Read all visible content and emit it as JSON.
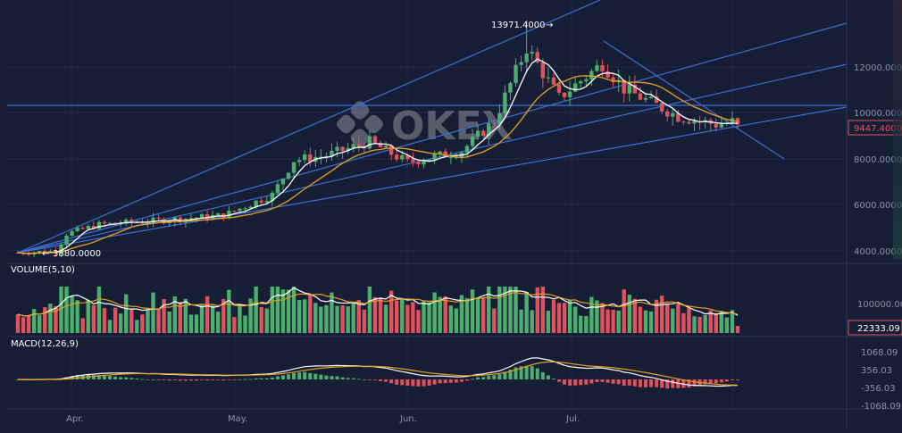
{
  "watermark": "OKEX",
  "price_panel": {
    "high_label": "13971.4000",
    "low_label": "3880.0000",
    "current_price": "9447.4000",
    "axis_ticks": [
      "12000.0000",
      "10000.0000",
      "8000.0000",
      "6000.0000",
      "4000.0000"
    ]
  },
  "volume_panel": {
    "label": "VOLUME(5,10)",
    "axis_ticks": [
      "100000.00"
    ],
    "current_value": "22333.09"
  },
  "macd_panel": {
    "label": "MACD(12,26,9)",
    "axis_ticks": [
      "1068.09",
      "356.03",
      "-356.03",
      "-1068.09"
    ]
  },
  "x_axis": {
    "months": [
      "Apr.",
      "May.",
      "Jun.",
      "Jul."
    ]
  },
  "colors": {
    "background": "#161e35",
    "up": "#4caf6e",
    "down": "#e0525e",
    "ma_fast": "#ffffff",
    "ma_slow": "#e8a020",
    "trendline": "#3d6fd4",
    "axis_text": "#8a93a8"
  },
  "chart_data": {
    "type": "candlestick",
    "x_range": [
      "2019-03-24",
      "2019-08-04"
    ],
    "ylim": [
      3500,
      14500
    ],
    "price_path": [
      {
        "date": "2019-03-24",
        "close": 3880
      },
      {
        "date": "2019-03-31",
        "close": 3950
      },
      {
        "date": "2019-04-02",
        "close": 4700
      },
      {
        "date": "2019-04-08",
        "close": 5100
      },
      {
        "date": "2019-04-20",
        "close": 5300
      },
      {
        "date": "2019-05-01",
        "close": 5500
      },
      {
        "date": "2019-05-10",
        "close": 6400
      },
      {
        "date": "2019-05-14",
        "close": 7900
      },
      {
        "date": "2019-05-20",
        "close": 8100
      },
      {
        "date": "2019-05-28",
        "close": 8700
      },
      {
        "date": "2019-06-04",
        "close": 7800
      },
      {
        "date": "2019-06-14",
        "close": 8300
      },
      {
        "date": "2019-06-20",
        "close": 9600
      },
      {
        "date": "2019-06-26",
        "close": 12800
      },
      {
        "date": "2019-07-02",
        "close": 10600
      },
      {
        "date": "2019-07-10",
        "close": 12100
      },
      {
        "date": "2019-07-14",
        "close": 11000
      },
      {
        "date": "2019-07-24",
        "close": 9800
      },
      {
        "date": "2019-07-31",
        "close": 9447
      }
    ]
  }
}
